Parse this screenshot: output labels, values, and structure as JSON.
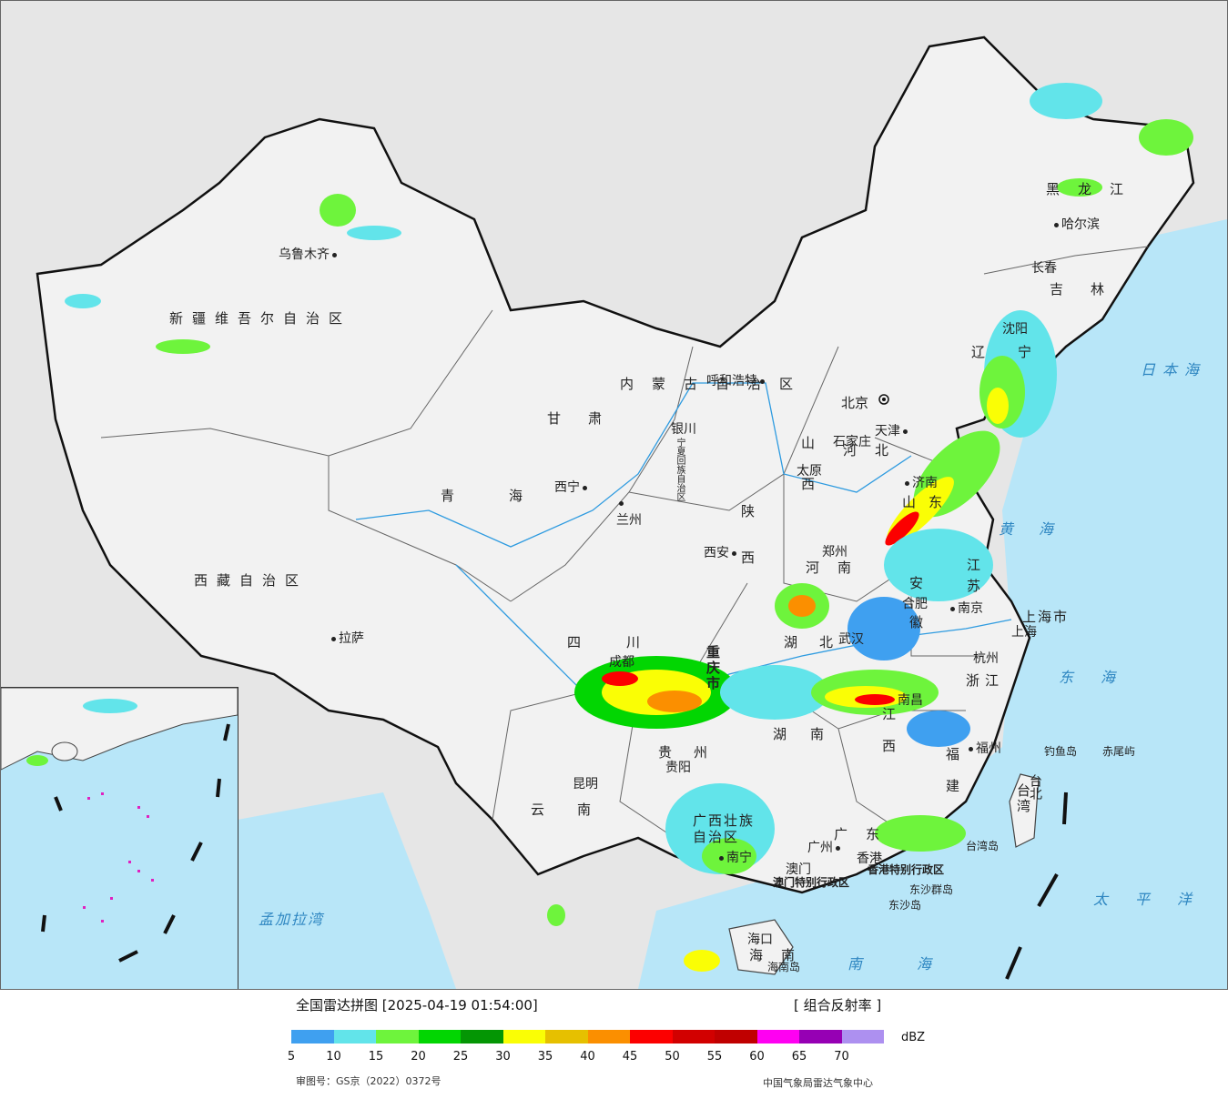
{
  "legend": {
    "title": "全国雷达拼图 [2025-04-19 01:54:00]",
    "product": "[ 组合反射率 ]",
    "unit": "dBZ",
    "scale": [
      {
        "value": "5",
        "color": "#3fa0f0"
      },
      {
        "value": "10",
        "color": "#62e4ea"
      },
      {
        "value": "15",
        "color": "#6ef43c"
      },
      {
        "value": "20",
        "color": "#02d602"
      },
      {
        "value": "25",
        "color": "#049604"
      },
      {
        "value": "30",
        "color": "#fafe05"
      },
      {
        "value": "35",
        "color": "#e6c000"
      },
      {
        "value": "40",
        "color": "#fb8f00"
      },
      {
        "value": "45",
        "color": "#fc0000"
      },
      {
        "value": "50",
        "color": "#d20000"
      },
      {
        "value": "55",
        "color": "#c00000"
      },
      {
        "value": "60",
        "color": "#ff00f2"
      },
      {
        "value": "65",
        "color": "#9600b4"
      },
      {
        "value": "70",
        "color": "#ad90f0"
      }
    ],
    "review_number": "审图号：GS京（2022）0372号",
    "source": "中国气象局雷达气象中心"
  },
  "regions": [
    {
      "name": "新疆维吾尔自治区"
    },
    {
      "name": "西藏自治区"
    },
    {
      "name": "青海"
    },
    {
      "name": "甘肃"
    },
    {
      "name": "内蒙古自治区"
    },
    {
      "name": "黑龙江"
    },
    {
      "name": "吉林"
    },
    {
      "name": "辽宁"
    },
    {
      "name": "河北"
    },
    {
      "name": "山西"
    },
    {
      "name": "陕西"
    },
    {
      "name": "河南"
    },
    {
      "name": "山东"
    },
    {
      "name": "江苏"
    },
    {
      "name": "安徽"
    },
    {
      "name": "湖北"
    },
    {
      "name": "四川"
    },
    {
      "name": "重庆市"
    },
    {
      "name": "贵州"
    },
    {
      "name": "云南"
    },
    {
      "name": "湖南"
    },
    {
      "name": "江西"
    },
    {
      "name": "浙江"
    },
    {
      "name": "福建"
    },
    {
      "name": "广东"
    },
    {
      "name": "广西壮族自治区"
    },
    {
      "name": "海南"
    },
    {
      "name": "台湾"
    },
    {
      "name": "上海市"
    },
    {
      "name": "宁夏回族自治区"
    },
    {
      "name": "香港特别行政区"
    },
    {
      "name": "澳门特别行政区"
    }
  ],
  "cities": [
    {
      "name": "乌鲁木齐"
    },
    {
      "name": "拉萨"
    },
    {
      "name": "西宁"
    },
    {
      "name": "兰州"
    },
    {
      "name": "银川"
    },
    {
      "name": "呼和浩特"
    },
    {
      "name": "北京"
    },
    {
      "name": "天津"
    },
    {
      "name": "石家庄"
    },
    {
      "name": "太原"
    },
    {
      "name": "西安"
    },
    {
      "name": "郑州"
    },
    {
      "name": "济南"
    },
    {
      "name": "沈阳"
    },
    {
      "name": "长春"
    },
    {
      "name": "哈尔滨"
    },
    {
      "name": "南京"
    },
    {
      "name": "合肥"
    },
    {
      "name": "上海"
    },
    {
      "name": "杭州"
    },
    {
      "name": "武汉"
    },
    {
      "name": "南昌"
    },
    {
      "name": "福州"
    },
    {
      "name": "台北"
    },
    {
      "name": "广州"
    },
    {
      "name": "香港"
    },
    {
      "name": "澳门"
    },
    {
      "name": "南宁"
    },
    {
      "name": "海口"
    },
    {
      "name": "贵阳"
    },
    {
      "name": "昆明"
    },
    {
      "name": "成都"
    }
  ],
  "seas": [
    {
      "name": "日本海"
    },
    {
      "name": "黄海"
    },
    {
      "name": "东海"
    },
    {
      "name": "太平洋"
    },
    {
      "name": "南海"
    },
    {
      "name": "孟加拉湾"
    }
  ],
  "islands": [
    {
      "name": "钓鱼岛"
    },
    {
      "name": "赤尾屿"
    },
    {
      "name": "东沙群岛"
    },
    {
      "name": "东沙岛"
    },
    {
      "name": "台湾岛"
    },
    {
      "name": "海南岛"
    }
  ]
}
